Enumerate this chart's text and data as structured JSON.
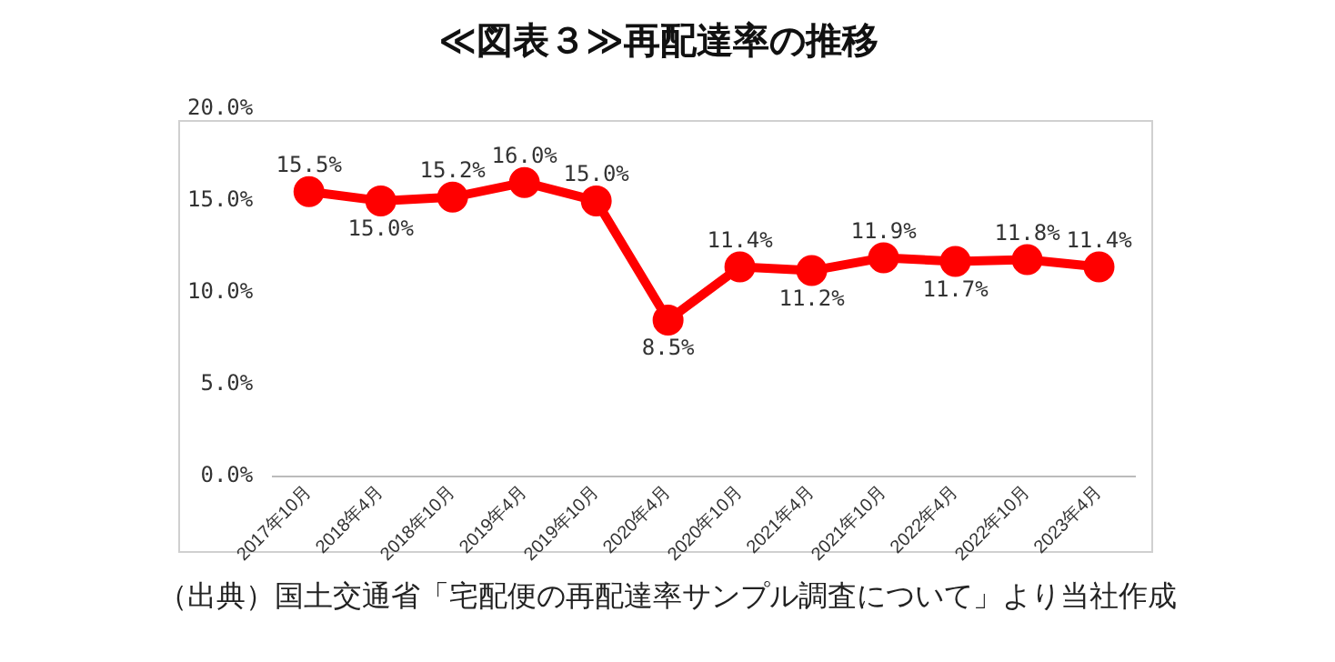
{
  "chart_data": {
    "type": "line",
    "title": "≪図表３≫再配達率の推移",
    "categories": [
      "2017年10月",
      "2018年4月",
      "2018年10月",
      "2019年4月",
      "2019年10月",
      "2020年4月",
      "2020年10月",
      "2021年4月",
      "2021年10月",
      "2022年4月",
      "2022年10月",
      "2023年4月"
    ],
    "series": [
      {
        "color": "#ff0000",
        "values": [
          15.5,
          15.0,
          15.2,
          16.0,
          15.0,
          8.5,
          11.4,
          11.2,
          11.9,
          11.7,
          11.8,
          11.4
        ],
        "value_labels": [
          "15.5%",
          "15.0%",
          "15.2%",
          "16.0%",
          "15.0%",
          "8.5%",
          "11.4%",
          "11.2%",
          "11.9%",
          "11.7%",
          "11.8%",
          "11.4%"
        ]
      }
    ],
    "ylim": [
      0,
      20
    ],
    "yticks": [
      {
        "value": 0,
        "label": "0.0%"
      },
      {
        "value": 5,
        "label": "5.0%"
      },
      {
        "value": 10,
        "label": "10.0%"
      },
      {
        "value": 15,
        "label": "15.0%"
      },
      {
        "value": 20,
        "label": "20.0%"
      }
    ],
    "grid": false,
    "legend": false,
    "marker": "circle",
    "line_style": "solid",
    "annotations": [
      "（出典）国土交通省「宅配便の再配達率サンプル調査について」より当社作成"
    ]
  }
}
